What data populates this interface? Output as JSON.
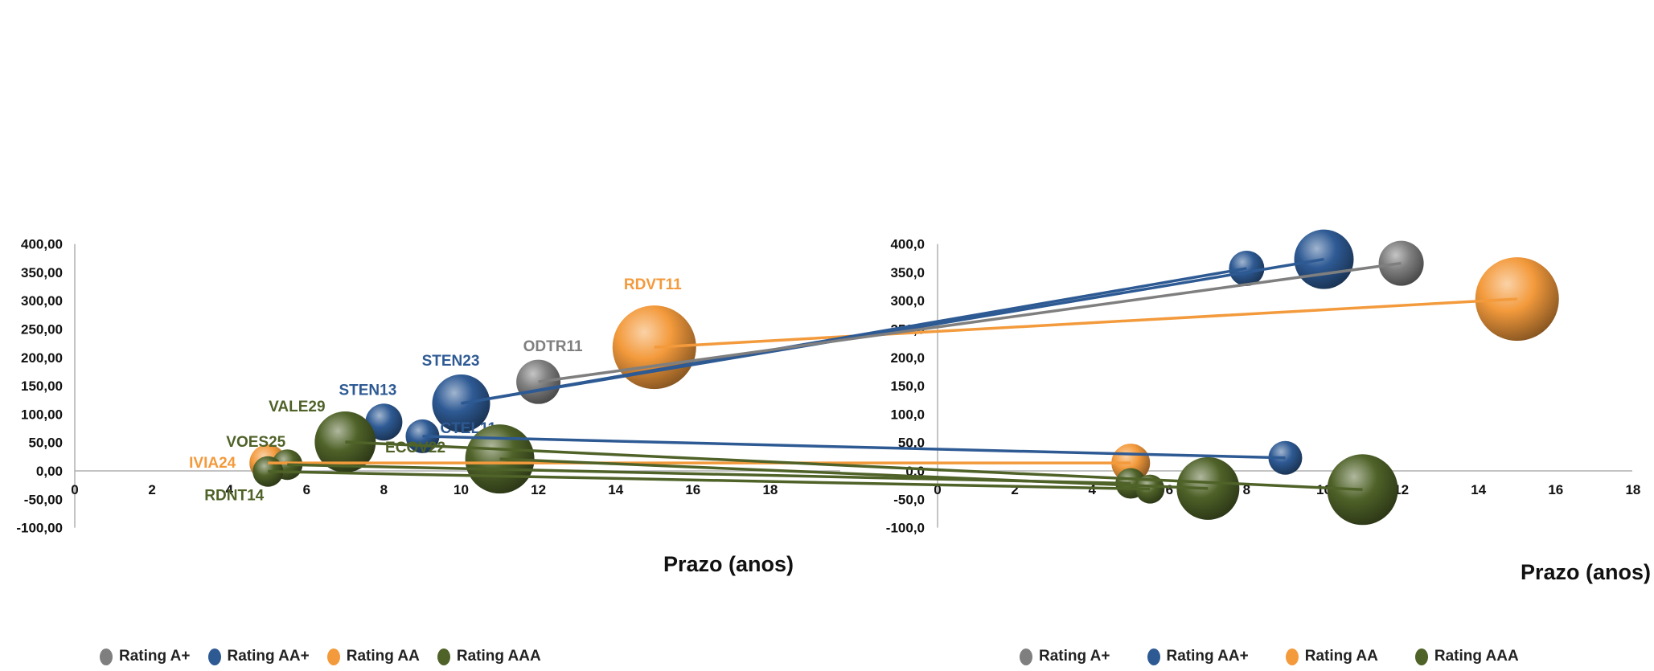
{
  "chart_data": [
    {
      "type": "scatter",
      "variant": "bubble",
      "xlabel": "Prazo (anos)",
      "ylabel": "",
      "xlim": [
        0,
        18
      ],
      "ylim": [
        -100,
        400
      ],
      "xticks": [
        0,
        2,
        4,
        6,
        8,
        10,
        12,
        14,
        16,
        18
      ],
      "yticks": [
        "400,00",
        "350,00",
        "300,00",
        "250,00",
        "200,00",
        "150,00",
        "100,00",
        "50,00",
        "0,00",
        "-50,00",
        "-100,00"
      ],
      "series": [
        {
          "name": "Rating A+",
          "color": "#7f7f7f",
          "points": [
            {
              "label": "ODTR11",
              "x": 12,
              "y": 157,
              "size": 55
            }
          ]
        },
        {
          "name": "Rating AA+",
          "color": "#2e5a94",
          "points": [
            {
              "label": "STEN13",
              "x": 8,
              "y": 86,
              "size": 46
            },
            {
              "label": "STEN23",
              "x": 10,
              "y": 119,
              "size": 72
            },
            {
              "label": "CTEL11",
              "x": 9,
              "y": 61,
              "size": 42
            }
          ]
        },
        {
          "name": "Rating AA",
          "color": "#f39a3c",
          "points": [
            {
              "label": "RDVT11",
              "x": 15,
              "y": 218,
              "size": 104
            },
            {
              "label": "IVIA24",
              "x": 5,
              "y": 14,
              "size": 46
            }
          ]
        },
        {
          "name": "Rating AAA",
          "color": "#4f6228",
          "points": [
            {
              "label": "VALE29",
              "x": 7,
              "y": 51,
              "size": 76
            },
            {
              "label": "ECOV22",
              "x": 11,
              "y": 21,
              "size": 86
            },
            {
              "label": "VOES25",
              "x": 5.5,
              "y": 11,
              "size": 38
            },
            {
              "label": "RDNT14",
              "x": 5,
              "y": -1,
              "size": 38
            }
          ]
        }
      ]
    },
    {
      "type": "scatter",
      "variant": "bubble",
      "xlabel": "Prazo (anos)",
      "ylabel": "",
      "xlim": [
        0,
        18
      ],
      "ylim": [
        -100,
        400
      ],
      "xticks": [
        0,
        2,
        4,
        6,
        8,
        10,
        12,
        14,
        16,
        18
      ],
      "yticks": [
        "400,0",
        "350,0",
        "300,0",
        "250,0",
        "200,0",
        "150,0",
        "100,0",
        "50,0",
        "0,0",
        "-50,0",
        "-100,0"
      ],
      "series": [
        {
          "name": "Rating A+",
          "color": "#7f7f7f",
          "points": [
            {
              "x": 12,
              "y": 366,
              "size": 56
            }
          ]
        },
        {
          "name": "Rating AA+",
          "color": "#2e5a94",
          "points": [
            {
              "x": 8,
              "y": 357,
              "size": 44
            },
            {
              "x": 10,
              "y": 373,
              "size": 74
            },
            {
              "x": 9,
              "y": 23,
              "size": 42
            }
          ]
        },
        {
          "name": "Rating AA",
          "color": "#f39a3c",
          "points": [
            {
              "x": 15,
              "y": 303,
              "size": 104
            },
            {
              "x": 5,
              "y": 14,
              "size": 48
            }
          ]
        },
        {
          "name": "Rating AAA",
          "color": "#4f6228",
          "points": [
            {
              "x": 5,
              "y": -22,
              "size": 38
            },
            {
              "x": 5.5,
              "y": -32,
              "size": 36
            },
            {
              "x": 7,
              "y": -31,
              "size": 78
            },
            {
              "x": 11,
              "y": -33,
              "size": 88
            }
          ]
        }
      ]
    }
  ]
}
